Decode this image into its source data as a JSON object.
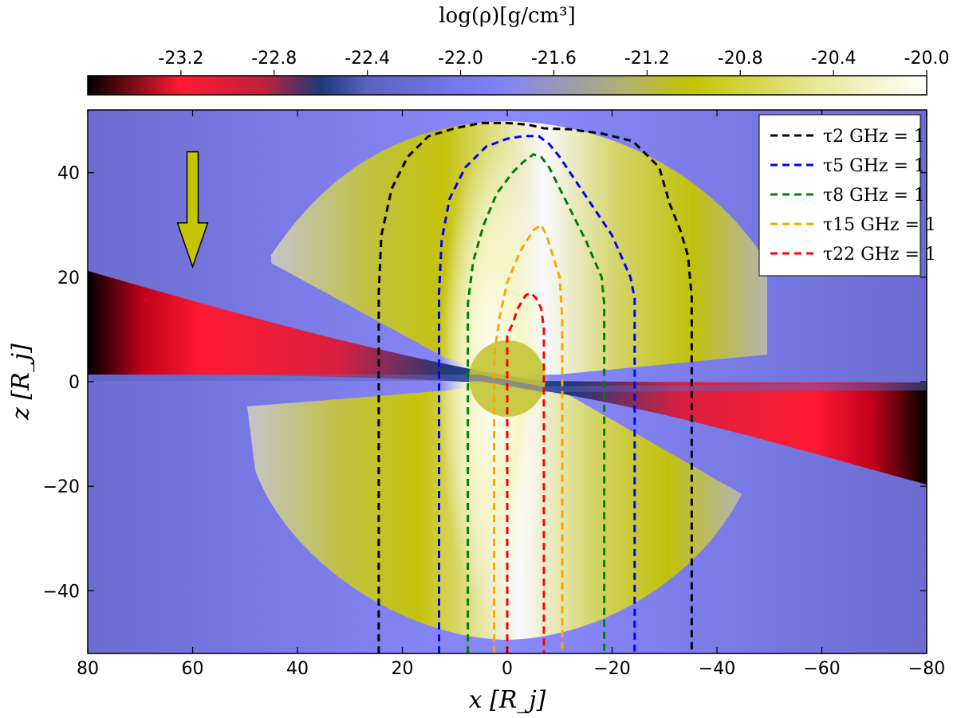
{
  "chart_data": {
    "type": "heatmap",
    "title": "",
    "colorbar": {
      "label": "log(ρ)[g/cm³]",
      "range": [
        -23.6,
        -20.0
      ],
      "ticks": [
        "-23.2",
        "-22.8",
        "-22.4",
        "-22.0",
        "-21.6",
        "-21.2",
        "-20.8",
        "-20.4",
        "-20.0"
      ],
      "tick_values": [
        -23.2,
        -22.8,
        -22.4,
        -22.0,
        -21.6,
        -21.2,
        -20.8,
        -20.4,
        -20.0
      ],
      "colormap_stops": [
        {
          "value": -23.6,
          "color": "#000000"
        },
        {
          "value": -23.2,
          "color": "#ff1a33"
        },
        {
          "value": -22.85,
          "color": "#c4203a"
        },
        {
          "value": -22.6,
          "color": "#1a3a7a"
        },
        {
          "value": -22.4,
          "color": "#5c62c0"
        },
        {
          "value": -21.85,
          "color": "#8080ff"
        },
        {
          "value": -21.3,
          "color": "#b0b070"
        },
        {
          "value": -21.0,
          "color": "#c4c400"
        },
        {
          "value": -20.5,
          "color": "#e6e690"
        },
        {
          "value": -20.0,
          "color": "#ffffff"
        }
      ]
    },
    "xlabel": "x [R_j]",
    "ylabel": "z [R_j]",
    "xlim": [
      80,
      -80
    ],
    "ylim": [
      -52,
      52
    ],
    "xticks": [
      80,
      60,
      40,
      20,
      0,
      -20,
      -40,
      -60,
      -80
    ],
    "xtick_labels": [
      "80",
      "60",
      "40",
      "20",
      "0",
      "−20",
      "−40",
      "−60",
      "−80"
    ],
    "yticks": [
      40,
      20,
      0,
      -20,
      -40
    ],
    "ytick_labels": [
      "40",
      "20",
      "0",
      "−20",
      "−40"
    ],
    "legend_position": "top-right",
    "series": [
      {
        "name": "τ2 GHz = 1",
        "sub": "2 GHz",
        "color": "#000000",
        "points": [
          [
            24.5,
            -52
          ],
          [
            24.5,
            17
          ],
          [
            24,
            28
          ],
          [
            22,
            37
          ],
          [
            19,
            43
          ],
          [
            15,
            47
          ],
          [
            10,
            48.5
          ],
          [
            5,
            49.5
          ],
          [
            0,
            49.5
          ],
          [
            -4,
            49.2
          ],
          [
            -7,
            48.5
          ],
          [
            -12,
            48.3
          ],
          [
            -18,
            47.5
          ],
          [
            -24,
            46
          ],
          [
            -29,
            41
          ],
          [
            -31,
            34
          ],
          [
            -33,
            29
          ],
          [
            -34.5,
            24
          ],
          [
            -35.2,
            16
          ],
          [
            -35.2,
            -52
          ]
        ]
      },
      {
        "name": "τ5 GHz = 1",
        "sub": "5 GHz",
        "color": "#0000ff",
        "points": [
          [
            13,
            -52
          ],
          [
            13,
            17
          ],
          [
            12.5,
            27
          ],
          [
            11,
            35
          ],
          [
            8,
            41
          ],
          [
            4,
            45
          ],
          [
            0,
            46.5
          ],
          [
            -3,
            47
          ],
          [
            -6,
            47
          ],
          [
            -8,
            45.5
          ],
          [
            -10,
            43
          ],
          [
            -12,
            40
          ],
          [
            -16,
            34
          ],
          [
            -20,
            28
          ],
          [
            -23.5,
            20
          ],
          [
            -24.3,
            16
          ],
          [
            -24.3,
            -52
          ]
        ]
      },
      {
        "name": "τ8 GHz = 1",
        "sub": "8 GHz",
        "color": "#008000",
        "points": [
          [
            7.5,
            -52
          ],
          [
            7.5,
            15
          ],
          [
            6.5,
            23
          ],
          [
            4.5,
            30
          ],
          [
            2,
            36
          ],
          [
            -1,
            40
          ],
          [
            -3,
            42
          ],
          [
            -5,
            43.5
          ],
          [
            -6.5,
            43
          ],
          [
            -8,
            41
          ],
          [
            -11,
            35
          ],
          [
            -15,
            27
          ],
          [
            -18,
            20
          ],
          [
            -18.5,
            15
          ],
          [
            -18.5,
            -52
          ]
        ]
      },
      {
        "name": "τ15 GHz = 1",
        "sub": "15 GHz",
        "color": "#ffa500",
        "points": [
          [
            2.5,
            -52
          ],
          [
            2.5,
            5
          ],
          [
            1.5,
            12
          ],
          [
            0,
            19
          ],
          [
            -2.5,
            25
          ],
          [
            -5,
            29
          ],
          [
            -6.5,
            30
          ],
          [
            -7.5,
            28
          ],
          [
            -10,
            20
          ],
          [
            -10.5,
            12
          ],
          [
            -10.5,
            5
          ],
          [
            -10.5,
            -52
          ]
        ]
      },
      {
        "name": "τ22 GHz = 1",
        "sub": "22 GHz",
        "color": "#ff0000",
        "points": [
          [
            0,
            -52
          ],
          [
            0,
            9
          ],
          [
            -1,
            11
          ],
          [
            -2,
            14
          ],
          [
            -3.5,
            16.5
          ],
          [
            -4.5,
            17
          ],
          [
            -5.5,
            16
          ],
          [
            -6.5,
            14
          ],
          [
            -7,
            10
          ],
          [
            -7,
            -52
          ]
        ]
      }
    ],
    "annotations": [
      {
        "type": "arrow",
        "at": [
          60,
          44
        ],
        "to": [
          60,
          22
        ],
        "color": "#c4c400"
      }
    ]
  }
}
